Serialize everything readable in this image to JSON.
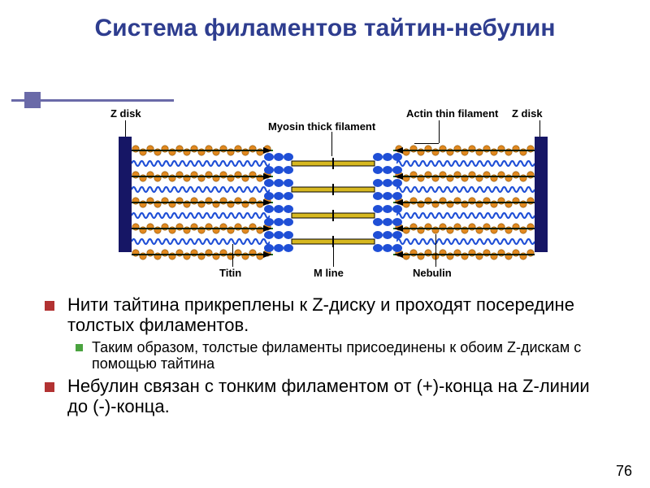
{
  "colors": {
    "title": "#2e3d8f",
    "accent": "#6a6aa8",
    "bullet1": "#b23232",
    "bullet2": "#4aa33f",
    "text": "#000000",
    "pageNum": "#000000",
    "zdisk": "#161665",
    "actinOrange": "#e08820",
    "nebulinGreen": "#1e7012",
    "arrowBlack": "#000000",
    "titinBlue": "#1f4fd6",
    "myosinBody": "#d7b820",
    "myosinHead": "#1f4fd6",
    "diagramBg": "#ffffff"
  },
  "typography": {
    "titleSize": 30,
    "lvl1Size": 22,
    "lvl2Size": 18,
    "labelSize": 13,
    "pageNumSize": 18
  },
  "title": "Система филаментов тайтин-небулин",
  "bullets": {
    "b1": "Нити тайтина прикреплены к Z-диску и проходят посередине толстых филаментов.",
    "b2": "Таким образом, толстые филаменты присоединены к обоим Z-дискам с помощью тайтина",
    "b3": "Небулин связан с тонким филаментом от (+)-конца на Z-линии до (-)-конца."
  },
  "pageNum": "76",
  "diagram": {
    "labels": {
      "zl": "Z disk",
      "zr": "Z disk",
      "actin": "Actin thin filament",
      "myosin": "Myosin thick filament",
      "titin": "Titin",
      "mline": "M line",
      "nebulin": "Nebulin"
    },
    "rows": {
      "thinYs": [
        48,
        80,
        112,
        144,
        176
      ],
      "thinWidth": 174,
      "titinRowYs": [
        64,
        96,
        128,
        160
      ],
      "titinStartX": 22,
      "titinWidth": 170,
      "myosinRowYs": [
        64,
        96,
        128,
        160
      ],
      "myosinWidth": 170
    }
  }
}
